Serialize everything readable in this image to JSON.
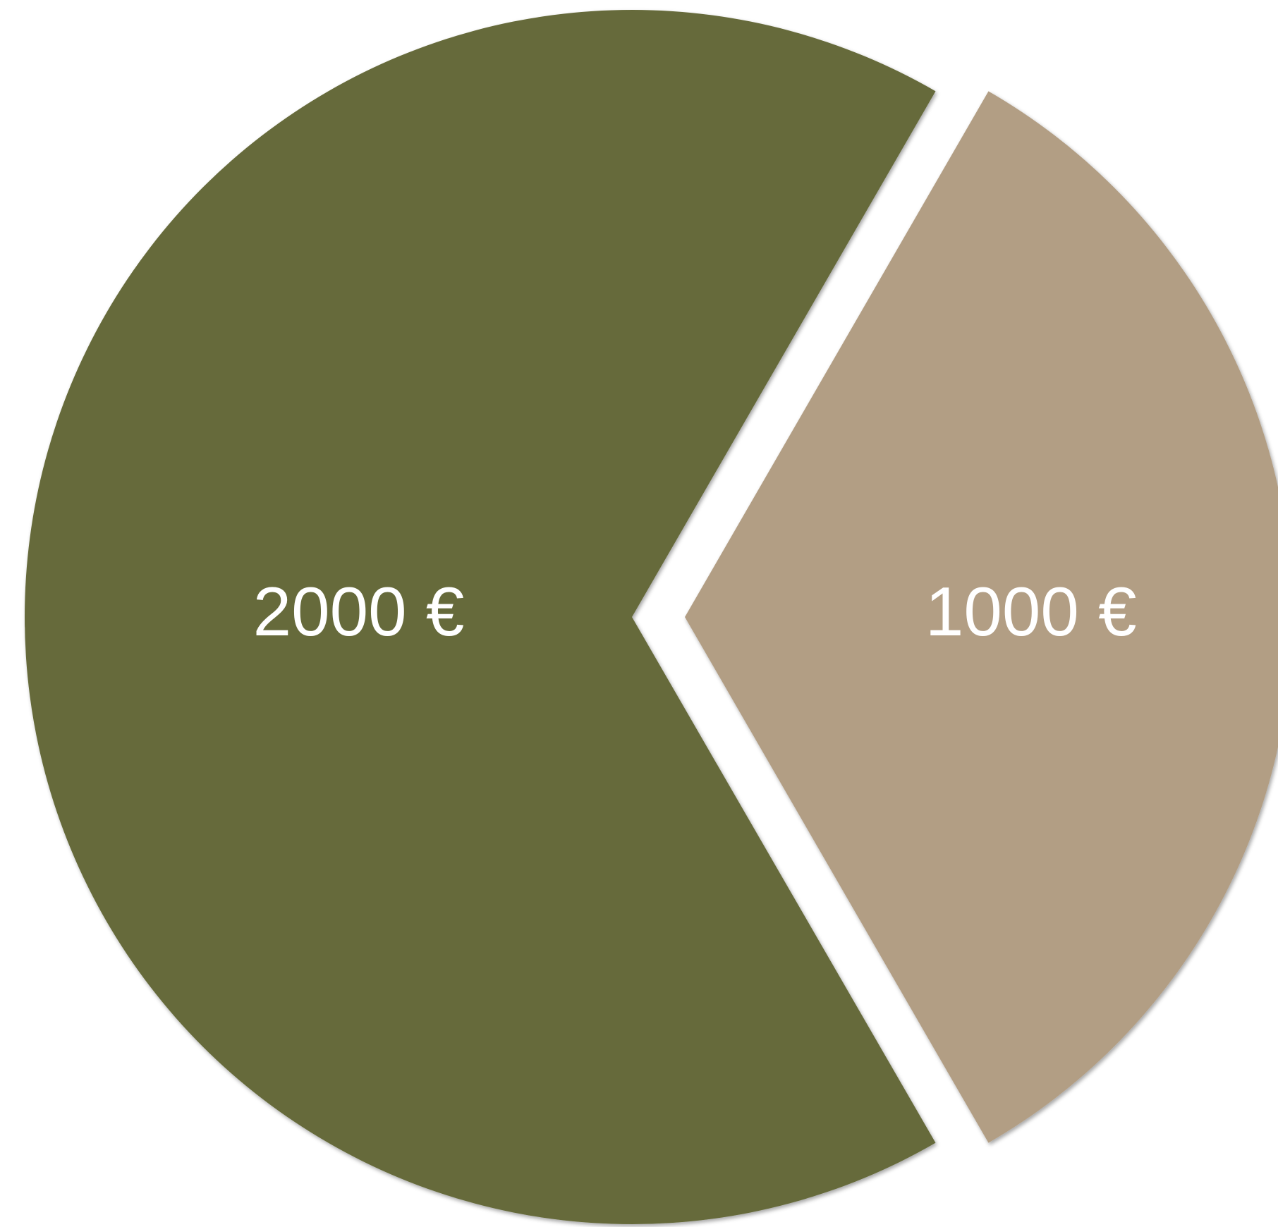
{
  "chart_data": {
    "type": "pie",
    "categories": [
      null,
      null
    ],
    "values": [
      2000,
      1000
    ],
    "value_labels": [
      "2000 €",
      "1000 €"
    ],
    "colors": [
      "#666b3a",
      "#b29e84"
    ]
  }
}
